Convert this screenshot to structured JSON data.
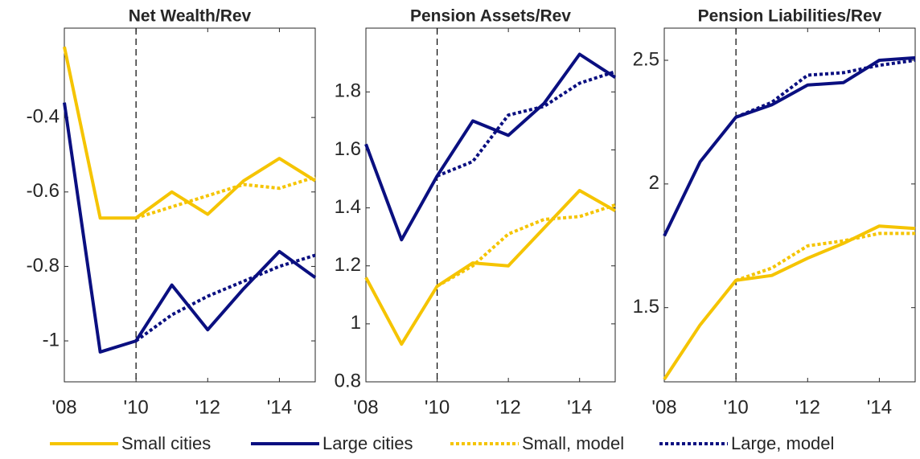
{
  "chart_data": [
    {
      "type": "line",
      "title": "Net Wealth/Rev",
      "x": [
        2008,
        2009,
        2010,
        2011,
        2012,
        2013,
        2014,
        2015
      ],
      "xlim": [
        2008,
        2015
      ],
      "xticks": [
        {
          "value": 2008,
          "label": "'08"
        },
        {
          "value": 2010,
          "label": "'10"
        },
        {
          "value": 2012,
          "label": "'12"
        },
        {
          "value": 2014,
          "label": "'14"
        }
      ],
      "ylim": [
        -1.11,
        -0.16
      ],
      "yticks": [
        -1,
        -0.8,
        -0.6,
        -0.4
      ],
      "vline": 2010,
      "series": [
        {
          "name": "Small cities",
          "color": "#f5c400",
          "dash": false,
          "values": [
            -0.21,
            -0.67,
            -0.67,
            -0.6,
            -0.66,
            -0.57,
            -0.51,
            -0.57
          ]
        },
        {
          "name": "Large cities",
          "color": "#0a0f80",
          "dash": false,
          "values": [
            -0.36,
            -1.03,
            -1.0,
            -0.85,
            -0.97,
            -0.86,
            -0.76,
            -0.83
          ]
        },
        {
          "name": "Small, model",
          "color": "#f5c400",
          "dash": true,
          "values": [
            null,
            null,
            -0.67,
            -0.64,
            -0.61,
            -0.58,
            -0.59,
            -0.56
          ]
        },
        {
          "name": "Large, model",
          "color": "#0a0f80",
          "dash": true,
          "values": [
            null,
            null,
            -1.0,
            -0.93,
            -0.88,
            -0.84,
            -0.8,
            -0.77
          ]
        }
      ]
    },
    {
      "type": "line",
      "title": "Pension Assets/Rev",
      "x": [
        2008,
        2009,
        2010,
        2011,
        2012,
        2013,
        2014,
        2015
      ],
      "xlim": [
        2008,
        2015
      ],
      "xticks": [
        {
          "value": 2008,
          "label": "'08"
        },
        {
          "value": 2010,
          "label": "'10"
        },
        {
          "value": 2012,
          "label": "'12"
        },
        {
          "value": 2014,
          "label": "'14"
        }
      ],
      "ylim": [
        0.8,
        2.02
      ],
      "yticks": [
        0.8,
        1,
        1.2,
        1.4,
        1.6,
        1.8
      ],
      "vline": 2010,
      "series": [
        {
          "name": "Small cities",
          "color": "#f5c400",
          "dash": false,
          "values": [
            1.16,
            0.93,
            1.13,
            1.21,
            1.2,
            1.33,
            1.46,
            1.39
          ]
        },
        {
          "name": "Large cities",
          "color": "#0a0f80",
          "dash": false,
          "values": [
            1.62,
            1.29,
            1.51,
            1.7,
            1.65,
            1.76,
            1.93,
            1.85
          ]
        },
        {
          "name": "Small, model",
          "color": "#f5c400",
          "dash": true,
          "values": [
            null,
            null,
            1.13,
            1.2,
            1.31,
            1.36,
            1.37,
            1.41
          ]
        },
        {
          "name": "Large, model",
          "color": "#0a0f80",
          "dash": true,
          "values": [
            null,
            null,
            1.51,
            1.56,
            1.72,
            1.75,
            1.83,
            1.87
          ]
        }
      ]
    },
    {
      "type": "line",
      "title": "Pension Liabilities/Rev",
      "x": [
        2008,
        2009,
        2010,
        2011,
        2012,
        2013,
        2014,
        2015
      ],
      "xlim": [
        2008,
        2015
      ],
      "xticks": [
        {
          "value": 2008,
          "label": "'08"
        },
        {
          "value": 2010,
          "label": "'10"
        },
        {
          "value": 2012,
          "label": "'12"
        },
        {
          "value": 2014,
          "label": "'14"
        }
      ],
      "ylim": [
        1.2,
        2.63
      ],
      "yticks": [
        1.5,
        2,
        2.5
      ],
      "vline": 2010,
      "series": [
        {
          "name": "Small cities",
          "color": "#f5c400",
          "dash": false,
          "values": [
            1.21,
            1.43,
            1.61,
            1.63,
            1.7,
            1.76,
            1.83,
            1.82
          ]
        },
        {
          "name": "Large cities",
          "color": "#0a0f80",
          "dash": false,
          "values": [
            1.79,
            2.09,
            2.27,
            2.32,
            2.4,
            2.41,
            2.5,
            2.51
          ]
        },
        {
          "name": "Small, model",
          "color": "#f5c400",
          "dash": true,
          "values": [
            null,
            null,
            1.61,
            1.66,
            1.75,
            1.77,
            1.8,
            1.8
          ]
        },
        {
          "name": "Large, model",
          "color": "#0a0f80",
          "dash": true,
          "values": [
            null,
            null,
            2.27,
            2.33,
            2.44,
            2.45,
            2.48,
            2.5
          ]
        }
      ]
    }
  ]
}
